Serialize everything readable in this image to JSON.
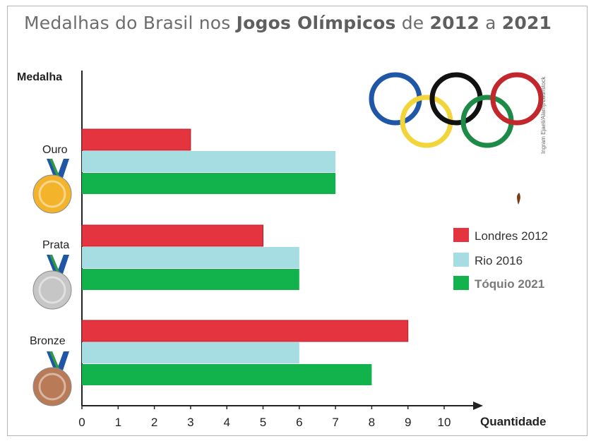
{
  "chart_data": {
    "type": "bar",
    "orientation": "horizontal",
    "title_parts": [
      "Medalhas do Brasil nos ",
      "Jogos Olímpicos",
      " de ",
      "2012",
      " a ",
      "2021"
    ],
    "ylabel": "Medalha",
    "xlabel": "Quantidade",
    "categories": [
      "Ouro",
      "Prata",
      "Bronze"
    ],
    "series": [
      {
        "name": "Londres 2012",
        "values": [
          3,
          5,
          9
        ],
        "color": "#e3343f"
      },
      {
        "name": "Rio 2016",
        "values": [
          7,
          6,
          6
        ],
        "color": "#a5dde3"
      },
      {
        "name": "Tóquio 2021",
        "values": [
          7,
          6,
          8
        ],
        "color": "#12b34c"
      }
    ],
    "xlim": [
      0,
      11
    ],
    "xticks": [
      "0",
      "1",
      "2",
      "3",
      "4",
      "5",
      "6",
      "7",
      "8",
      "9",
      "10"
    ],
    "grid": false,
    "legend_position": "right"
  },
  "decor": {
    "ring_colors": [
      "#1f57a6",
      "#f2d43b",
      "#111111",
      "#1d8a47",
      "#c1272d"
    ],
    "credit_text": "Ingram Ejaeli/Alamy/Latinstock",
    "medal_colors": {
      "gold": "#f3b42c",
      "silver": "#c6c6c6",
      "bronze": "#b97a57"
    }
  }
}
